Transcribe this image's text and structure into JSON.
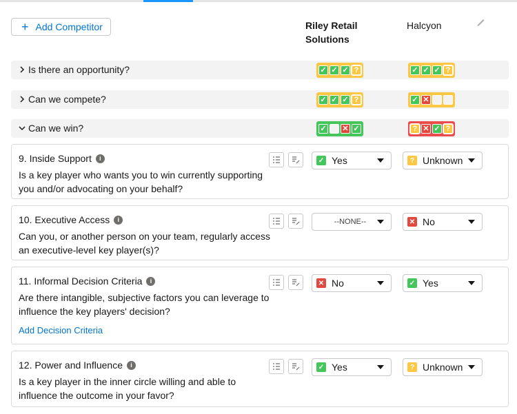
{
  "header": {
    "add_competitor_label": "Add Competitor"
  },
  "competitors": [
    "Riley Retail Solutions",
    "Halcyon"
  ],
  "colors": {
    "yes": "#45c65a",
    "no": "#e2483d",
    "unknown": "#fcc742",
    "link": "#0176d3",
    "accent": "#1b96ff"
  },
  "sections": [
    {
      "title": "Is there an opportunity?",
      "expanded": false,
      "scores": [
        {
          "color": "yellow",
          "cells": [
            "yes",
            "yes",
            "yes",
            "unknown"
          ]
        },
        {
          "color": "yellow",
          "cells": [
            "yes",
            "yes",
            "yes",
            "unknown"
          ]
        }
      ]
    },
    {
      "title": "Can we compete?",
      "expanded": false,
      "scores": [
        {
          "color": "yellow",
          "cells": [
            "yes",
            "yes",
            "yes",
            "unknown"
          ]
        },
        {
          "color": "yellow",
          "cells": [
            "yes",
            "no",
            "empty",
            "empty"
          ]
        }
      ]
    },
    {
      "title": "Can we win?",
      "expanded": true,
      "scores": [
        {
          "color": "green",
          "cells": [
            "yes",
            "empty",
            "no",
            "yes"
          ]
        },
        {
          "color": "red",
          "cells": [
            "unknown",
            "no",
            "yes",
            "unknown"
          ]
        }
      ]
    }
  ],
  "questions": [
    {
      "title": "9. Inside Support",
      "description": "Is a key player who wants you to win currently supporting you and/or advocating on your behalf?",
      "link": "",
      "answers": [
        {
          "value": "Yes",
          "status": "yes"
        },
        {
          "value": "Unknown",
          "status": "unknown"
        }
      ]
    },
    {
      "title": "10. Executive Access",
      "description": "Can you, or another person on your team, regularly access an executive-level key player(s)?",
      "link": "",
      "answers": [
        {
          "value": "--NONE--",
          "status": "none"
        },
        {
          "value": "No",
          "status": "no"
        }
      ]
    },
    {
      "title": "11. Informal Decision Criteria",
      "description": "Are there intangible, subjective factors you can leverage to influence the key players' decision?",
      "link": "Add Decision Criteria",
      "answers": [
        {
          "value": "No",
          "status": "no"
        },
        {
          "value": "Yes",
          "status": "yes"
        }
      ]
    },
    {
      "title": "12. Power and Influence",
      "description": "Is a key player in the inner circle willing and able to influence the outcome in your favor?",
      "link": "",
      "answers": [
        {
          "value": "Yes",
          "status": "yes"
        },
        {
          "value": "Unknown",
          "status": "unknown"
        }
      ]
    }
  ],
  "icons": {
    "caret_collapsed": "chevron-right-icon",
    "caret_expanded": "chevron-down-icon",
    "edit": "pencil-icon",
    "info": "info-icon",
    "checklist": "checklist-icon",
    "notes": "notes-icon"
  }
}
